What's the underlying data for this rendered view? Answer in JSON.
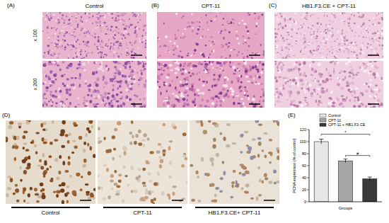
{
  "panels": {
    "A": {
      "label": "(A)",
      "title": "Control"
    },
    "B": {
      "label": "(B)",
      "title": "CPT-11"
    },
    "C": {
      "label": "(C)",
      "title": "HB1.F3.CE + CPT-11"
    },
    "magnifications": [
      "x 100",
      "x 200"
    ],
    "D": {
      "label": "(D)",
      "captions": [
        "Control",
        "CPT-11",
        "HB1.F3.CE+ CPT-11"
      ]
    },
    "E": {
      "label": "(E)"
    }
  },
  "chart_data": {
    "type": "bar",
    "categories": [
      "Control",
      "CPT-11",
      "CPT-11 + HB1.F3.CE"
    ],
    "values": [
      100,
      68,
      38
    ],
    "errors": [
      4,
      3,
      3
    ],
    "colors": [
      "#e6e6e6",
      "#a6a6a6",
      "#3a3a3a"
    ],
    "x_label": "Groups",
    "y_label": "PCNA expression (% of control)",
    "ylim": [
      0,
      120
    ],
    "yticks": [
      0,
      20,
      40,
      60,
      80,
      100,
      120
    ],
    "tick_labels": "y",
    "annotations": [
      "*",
      "#"
    ]
  }
}
